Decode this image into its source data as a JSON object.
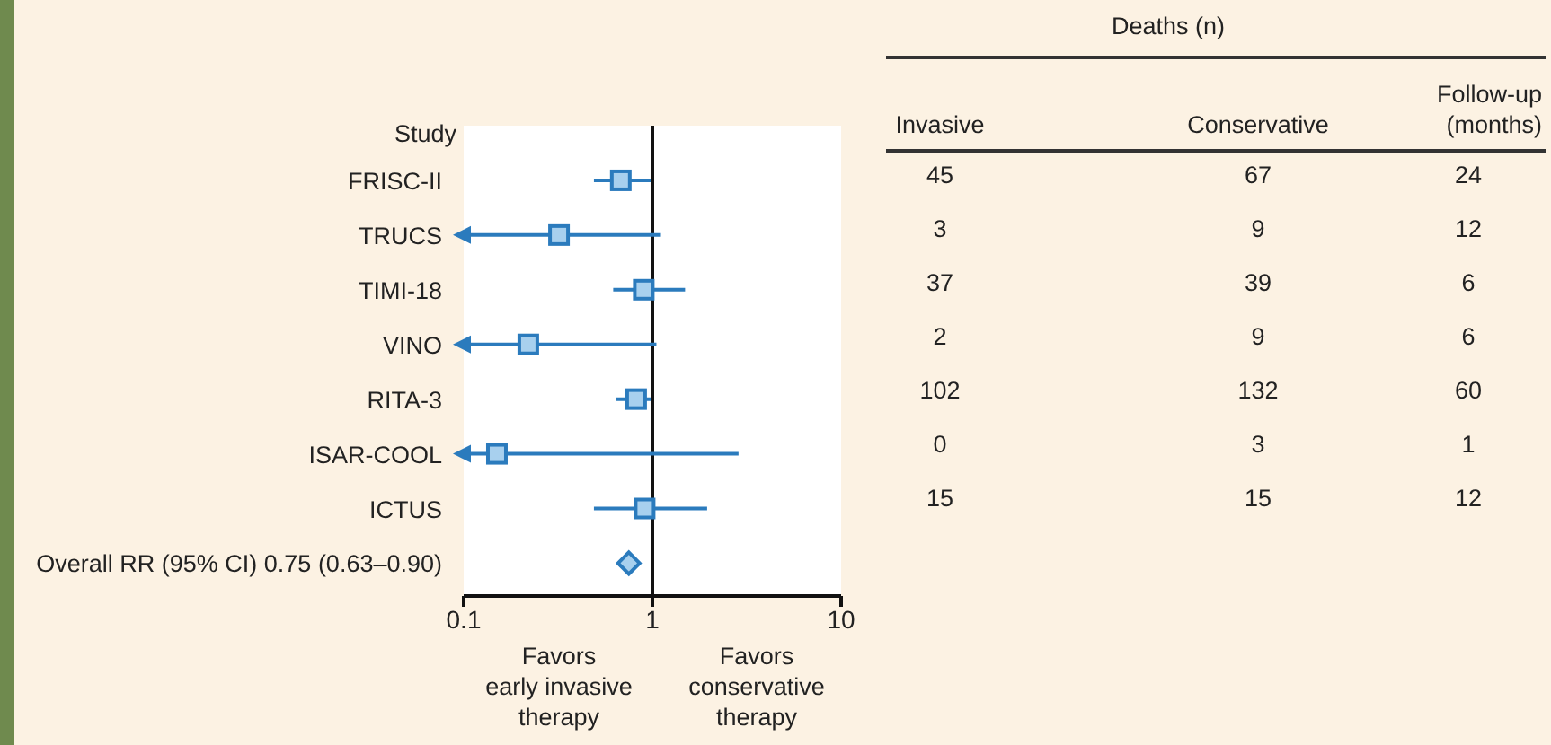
{
  "chart_data": [
    {
      "type": "scatter",
      "orientation": "horizontal",
      "categories": [
        "FRISC-II",
        "TRUCS",
        "TIMI-18",
        "VINO",
        "RITA-3",
        "ISAR-COOL",
        "ICTUS",
        "Overall RR (95% CI) 0.75 (0.63–0.90)"
      ],
      "series": [
        {
          "color": "#2b7bbd",
          "marker": "square",
          "values": [
            0.68,
            0.32,
            0.9,
            0.22,
            0.82,
            0.15,
            0.91,
            null
          ],
          "errors": [
            [
              0.49,
              0.98
            ],
            [
              0.1,
              1.11
            ],
            [
              0.62,
              1.49
            ],
            [
              0.1,
              1.05
            ],
            [
              0.64,
              0.98
            ],
            [
              0.1,
              2.86
            ],
            [
              0.49,
              1.95
            ],
            null
          ]
        },
        {
          "color": "#2b7bbd",
          "marker": "diamond",
          "values": [
            null,
            null,
            null,
            null,
            null,
            null,
            null,
            0.75
          ]
        }
      ],
      "log": "x",
      "xlim": [
        0.1,
        10
      ],
      "xticks": [
        0.1,
        1,
        10
      ],
      "ref_lines": [
        {
          "axis": "x",
          "value": 1,
          "color": "#111111"
        }
      ],
      "annotations": [
        "Study",
        "Favors\nearly invasive\ntherapy",
        "Favors\nconservative\ntherapy"
      ]
    },
    {
      "type": "other",
      "title": "Deaths (n)",
      "categories": [
        "Invasive",
        "Conservative",
        "Follow-up (months)"
      ],
      "annotations": [
        "45",
        "67",
        "24",
        "3",
        "9",
        "12",
        "37",
        "39",
        "6",
        "2",
        "9",
        "6",
        "102",
        "132",
        "60",
        "0",
        "3",
        "1",
        "15",
        "15",
        "12"
      ]
    }
  ]
}
